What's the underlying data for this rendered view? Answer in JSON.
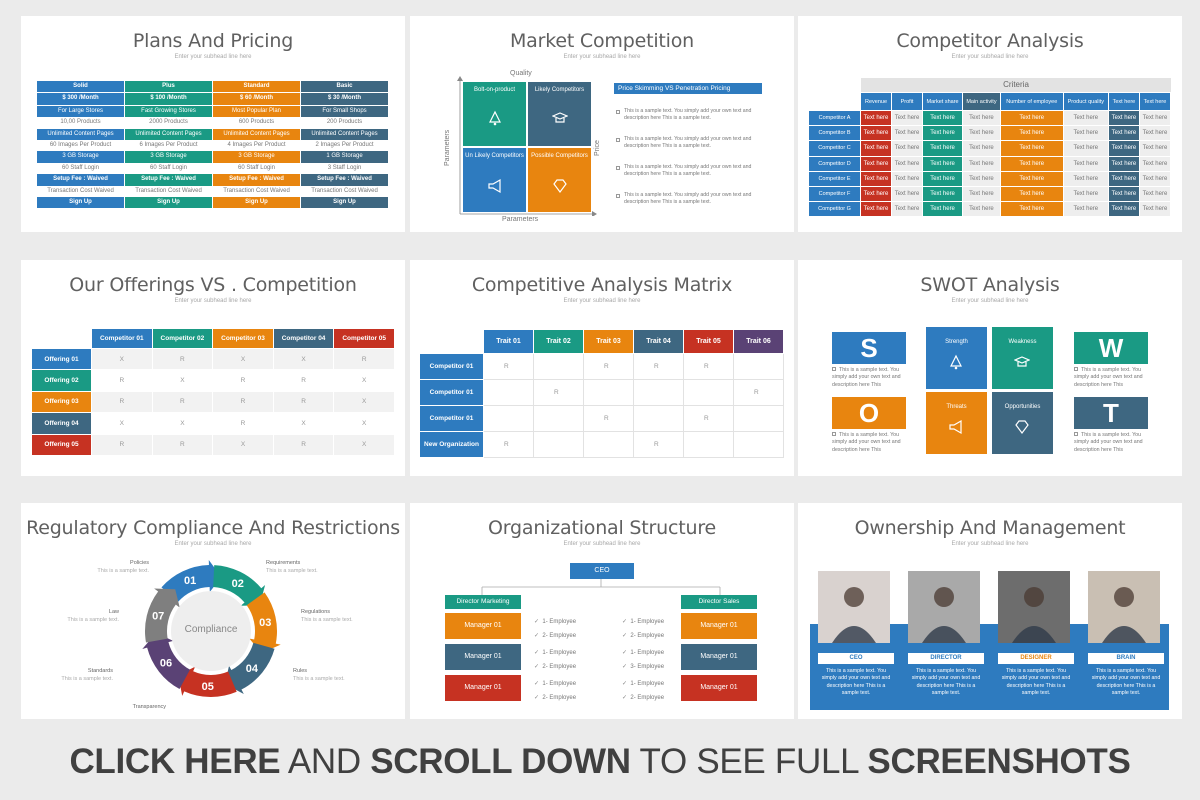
{
  "slides": {
    "plans": {
      "title": "Plans And Pricing",
      "subtitle": "Enter your subhead line here",
      "plans": [
        {
          "name": "Solid",
          "price": "$ 300 /Month",
          "for": "For Large Stores",
          "products": "10,00 Products",
          "pages": "Unlimited Content Pages",
          "images": "60 Images Per Product",
          "storage": "3 GB Storage",
          "staff": "60 Staff Login",
          "setup": "Setup Fee : Waived",
          "txn": "Transaction Cost Waived",
          "cta": "Sign Up"
        },
        {
          "name": "Plus",
          "price": "$ 100 /Month",
          "for": "Fast Growing Stores",
          "products": "2000 Products",
          "pages": "Unlimited Content Pages",
          "images": "6 Images Per Product",
          "storage": "3 GB Storage",
          "staff": "60 Staff Login",
          "setup": "Setup Fee : Waived",
          "txn": "Transaction Cost Waived",
          "cta": "Sign Up"
        },
        {
          "name": "Standard",
          "price": "$ 60 /Month",
          "for": "Most Popular Plan",
          "products": "600 Products",
          "pages": "Unlimited Content Pages",
          "images": "4 Images Per Product",
          "storage": "3 GB Storage",
          "staff": "60 Staff Login",
          "setup": "Setup Fee : Waived",
          "txn": "Transaction Cost Waived",
          "cta": "Sign Up"
        },
        {
          "name": "Basic",
          "price": "$ 30 /Month",
          "for": "For Small Shops",
          "products": "200 Products",
          "pages": "Unlimited Content Pages",
          "images": "2 Images Per Product",
          "storage": "1 GB Storage",
          "staff": "3 Staff Login",
          "setup": "Setup Fee : Waived",
          "txn": "Transaction Cost Waived",
          "cta": "Sign Up"
        }
      ]
    },
    "market": {
      "title": "Market Competition",
      "subtitle": "Enter your subhead line here",
      "axis_top": "Quality",
      "axis_left": "Parameters",
      "axis_bottom": "Parameters",
      "axis_right": "Price",
      "quadrants": [
        "Bolt-on-product",
        "Likely Competitors",
        "Un Likely Competitors",
        "Possible Competitors"
      ],
      "panel_title": "Price Skimming VS Penetration Pricing",
      "notes": [
        "This is a sample text. You simply add your own text and description here This is a sample text.",
        "This is a sample text. You simply add your own text and description here This is a sample text.",
        "This is a sample text. You simply add your own text and description here This is a sample text.",
        "This is a sample text. You simply add your own text and description here This is a sample text."
      ]
    },
    "competitor": {
      "title": "Competitor Analysis",
      "subtitle": "Enter your subhead line here",
      "criteria": "Criteria",
      "headers": [
        "Revenue",
        "Profit",
        "Market share",
        "Main activity",
        "Number of employee",
        "Product quality",
        "Text here",
        "Text here"
      ],
      "rows": [
        "Competitor A",
        "Competitor B",
        "Competitor C",
        "Competitor D",
        "Competitor E",
        "Competitor F",
        "Competitor G"
      ],
      "cell": "Text here"
    },
    "offerings": {
      "title": "Our Offerings VS . Competition",
      "subtitle": "Enter your subhead line here",
      "cols": [
        "Competitor 01",
        "Competitor 02",
        "Competitor 03",
        "Competitor 04",
        "Competitor 05"
      ],
      "rows": [
        {
          "name": "Offering 01",
          "vals": [
            "X",
            "R",
            "X",
            "X",
            "R"
          ]
        },
        {
          "name": "Offering 02",
          "vals": [
            "R",
            "X",
            "R",
            "R",
            "X"
          ]
        },
        {
          "name": "Offering 03",
          "vals": [
            "R",
            "R",
            "R",
            "R",
            "X"
          ]
        },
        {
          "name": "Offering 04",
          "vals": [
            "X",
            "X",
            "R",
            "X",
            "X"
          ]
        },
        {
          "name": "Offering 05",
          "vals": [
            "R",
            "R",
            "X",
            "R",
            "X"
          ]
        }
      ]
    },
    "matrix": {
      "title": "Competitive Analysis Matrix",
      "subtitle": "Enter your subhead line here",
      "cols": [
        "Trait 01",
        "Trait 02",
        "Trait 03",
        "Trait 04",
        "Trait 05",
        "Trait 06"
      ],
      "rows": [
        {
          "name": "Competitor 01",
          "vals": [
            "R",
            "",
            "R",
            "R",
            "R",
            ""
          ]
        },
        {
          "name": "Competitor 01",
          "vals": [
            "",
            "R",
            "",
            "",
            "",
            "R"
          ]
        },
        {
          "name": "Competitor 01",
          "vals": [
            "",
            "",
            "R",
            "",
            "R",
            ""
          ]
        },
        {
          "name": "New Organization",
          "vals": [
            "R",
            "",
            "",
            "R",
            "",
            ""
          ]
        }
      ]
    },
    "swot": {
      "title": "SWOT Analysis",
      "subtitle": "Enter your subhead line here",
      "letters": [
        "S",
        "W",
        "O",
        "T"
      ],
      "labels": [
        "Strength",
        "Weakness",
        "Threats",
        "Opportunities"
      ],
      "desc": "This is a sample text. You simply add your own text and description here This"
    },
    "regulatory": {
      "title": "Regulatory Compliance And Restrictions",
      "subtitle": "Enter your subhead line here",
      "center": "Compliance",
      "steps": [
        "01",
        "02",
        "03",
        "04",
        "05",
        "06",
        "07"
      ],
      "labels": [
        "Policies",
        "Requirements",
        "Regulations",
        "Rules",
        "Transparency",
        "Standards",
        "Law"
      ],
      "desc": "This is a sample text."
    },
    "org": {
      "title": "Organizational Structure",
      "subtitle": "Enter your subhead line here",
      "top": "CEO",
      "left_head": "Director Marketing",
      "right_head": "Director Sales",
      "manager": "Manager 01",
      "e1": "1- Employee",
      "e2": "2- Employee",
      "e3": "3- Employee"
    },
    "ownership": {
      "title": "Ownership And Management",
      "subtitle": "Enter your subhead line here",
      "people": [
        {
          "role": "CEO"
        },
        {
          "role": "DIRECTOR"
        },
        {
          "role": "DESIGNER"
        },
        {
          "role": "BRAIN"
        }
      ],
      "desc": "This is a sample text. You simply add your own text and description here This is a sample text."
    }
  },
  "banner": {
    "part1": "CLICK HERE",
    "part2": " AND ",
    "part3": "SCROLL DOWN",
    "part4": " TO SEE FULL ",
    "part5": "SCREENSHOTS"
  },
  "colors": {
    "blue": "#2e7bbf",
    "green": "#1a9a84",
    "orange": "#e8850f",
    "slate": "#3e6781",
    "red": "#c63222",
    "purple": "#5a4275"
  }
}
